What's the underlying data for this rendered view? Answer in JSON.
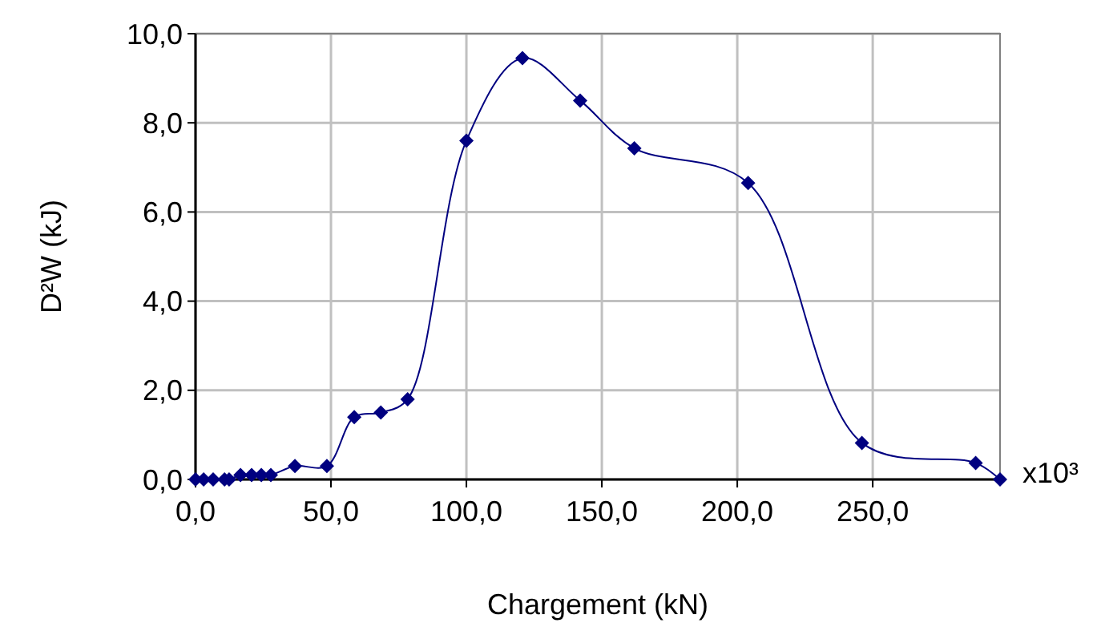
{
  "chart_data": {
    "type": "line",
    "xlabel": "Chargement (kN)",
    "ylabel": "D²W (kJ)",
    "annotations": [
      "x10³"
    ],
    "x": [
      0,
      3,
      6.5,
      10.7,
      12.4,
      16.6,
      20.7,
      24.3,
      27.8,
      36.7,
      48.5,
      58.6,
      68.4,
      78.3,
      100,
      120.7,
      142,
      162,
      204,
      246,
      288,
      297
    ],
    "series": [
      {
        "color": "#000080",
        "values": [
          0,
          0,
          0,
          0,
          0,
          0.1,
          0.1,
          0.1,
          0.1,
          0.3,
          0.3,
          1.4,
          1.5,
          1.8,
          7.6,
          9.45,
          8.5,
          7.43,
          6.65,
          0.82,
          0.37,
          0
        ]
      }
    ],
    "xlim": [
      0,
      297
    ],
    "ylim": [
      0,
      10
    ],
    "xticks": [
      {
        "value": 0,
        "label": "0,0"
      },
      {
        "value": 50,
        "label": "50,0"
      },
      {
        "value": 100,
        "label": "100,0"
      },
      {
        "value": 150,
        "label": "150,0"
      },
      {
        "value": 200,
        "label": "200,0"
      },
      {
        "value": 250,
        "label": "250,0"
      }
    ],
    "yticks": [
      {
        "value": 0,
        "label": "0,0"
      },
      {
        "value": 2,
        "label": "2,0"
      },
      {
        "value": 4,
        "label": "4,0"
      },
      {
        "value": 6,
        "label": "6,0"
      },
      {
        "value": 8,
        "label": "8,0"
      },
      {
        "value": 10,
        "label": "10,0"
      }
    ],
    "grid": true,
    "marker": "diamond",
    "line_style": "solid"
  }
}
